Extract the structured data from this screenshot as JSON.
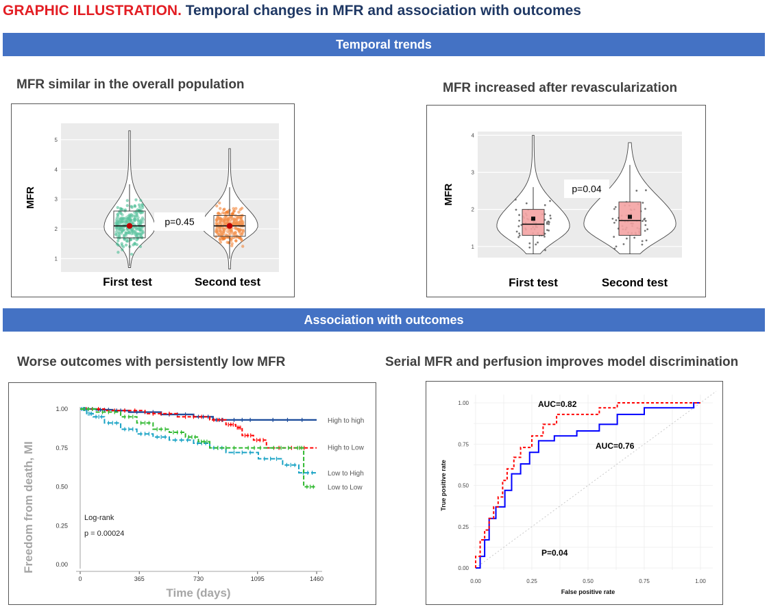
{
  "header": {
    "title_red": "GRAPHIC ILLUSTRATION.",
    "title_rest": "Temporal changes in MFR and association with outcomes",
    "banner_trends": "Temporal trends",
    "banner_outcomes": "Association with outcomes"
  },
  "colors": {
    "title_red": "#e31e24",
    "title_navy": "#1f3864",
    "banner": "#4472c4",
    "teal": "#3cb88c",
    "orange": "#f07c2a",
    "pink": "#f4a3a3",
    "navy": "#1f4e9c",
    "red": "#ff0000",
    "green": "#2eb82e",
    "cyan": "#17a2c4",
    "blue": "#0000ff"
  },
  "chart_data": [
    {
      "id": "violin_overall",
      "type": "violin",
      "title": "MFR similar in the overall population",
      "ylabel": "MFR",
      "categories": [
        "First test",
        "Second test"
      ],
      "ylim": [
        0.55,
        5.55
      ],
      "yticks": [
        1,
        2,
        3,
        4,
        5
      ],
      "ytick_labels": [
        "1",
        "2",
        "3",
        "4",
        "5"
      ],
      "stats": [
        {
          "name": "First test",
          "q1": 1.7,
          "median": 2.1,
          "q3": 2.6,
          "mean": 2.1,
          "min": 0.7,
          "max": 5.3
        },
        {
          "name": "Second test",
          "q1": 1.75,
          "median": 2.1,
          "q3": 2.45,
          "mean": 2.1,
          "min": 0.65,
          "max": 4.7
        }
      ],
      "annotation": "p=0.45"
    },
    {
      "id": "violin_revasc",
      "type": "violin",
      "title": "MFR increased after revascularization",
      "ylabel": "MFR",
      "categories": [
        "First test",
        "Second test"
      ],
      "ylim": [
        0.7,
        4.1
      ],
      "yticks": [
        1,
        2,
        3,
        4
      ],
      "ytick_labels": [
        "1",
        "2",
        "3",
        "4"
      ],
      "stats": [
        {
          "name": "First test",
          "q1": 1.3,
          "median": 1.6,
          "q3": 2.0,
          "mean": 1.75,
          "min": 0.8,
          "max": 4.0
        },
        {
          "name": "Second test",
          "q1": 1.3,
          "median": 1.7,
          "q3": 2.2,
          "mean": 1.8,
          "min": 0.8,
          "max": 3.8
        }
      ],
      "annotation": "p=0.04"
    },
    {
      "id": "km",
      "type": "line",
      "title": "Worse outcomes with persistently low MFR",
      "xlabel": "Time (days)",
      "ylabel": "Freedom from death, MI",
      "xlim": [
        0,
        1460
      ],
      "ylim": [
        0,
        1
      ],
      "xticks": [
        0,
        365,
        730,
        1095,
        1460
      ],
      "xtick_labels": [
        "0",
        "365",
        "730",
        "1095",
        "1460"
      ],
      "yticks": [
        0,
        0.25,
        0.5,
        0.75,
        1.0
      ],
      "ytick_labels": [
        "0.00",
        "0.25",
        "0.50",
        "0.75",
        "1.00"
      ],
      "series": [
        {
          "name": "High to high",
          "x": [
            0,
            100,
            200,
            300,
            500,
            700,
            820,
            900,
            1100,
            1460
          ],
          "y": [
            1.0,
            0.995,
            0.99,
            0.98,
            0.965,
            0.95,
            0.93,
            0.93,
            0.93,
            0.93
          ]
        },
        {
          "name": "High to Low",
          "x": [
            0,
            150,
            400,
            600,
            800,
            900,
            960,
            1000,
            1070,
            1150,
            1460
          ],
          "y": [
            1.0,
            0.99,
            0.97,
            0.95,
            0.93,
            0.9,
            0.88,
            0.83,
            0.8,
            0.75,
            0.75
          ]
        },
        {
          "name": "Low to High",
          "x": [
            0,
            40,
            80,
            150,
            250,
            350,
            450,
            550,
            700,
            800,
            900,
            1100,
            1250,
            1350,
            1460
          ],
          "y": [
            1.0,
            0.97,
            0.95,
            0.91,
            0.87,
            0.84,
            0.82,
            0.8,
            0.78,
            0.75,
            0.72,
            0.68,
            0.64,
            0.59,
            0.59
          ]
        },
        {
          "name": "Low to Low",
          "x": [
            0,
            100,
            250,
            350,
            450,
            550,
            650,
            730,
            800,
            1000,
            1150,
            1330,
            1380,
            1460
          ],
          "y": [
            1.0,
            0.98,
            0.95,
            0.91,
            0.87,
            0.85,
            0.82,
            0.79,
            0.75,
            0.75,
            0.75,
            0.75,
            0.5,
            0.5
          ]
        }
      ],
      "annotations": [
        "Log-rank",
        "p = 0.00024"
      ]
    },
    {
      "id": "roc",
      "type": "line",
      "title": "Serial MFR and perfusion improves model discrimination",
      "xlabel": "False positive rate",
      "ylabel": "True positive rate",
      "xlim": [
        0,
        1
      ],
      "ylim": [
        0,
        1
      ],
      "xticks": [
        0,
        0.25,
        0.5,
        0.75,
        1.0
      ],
      "xtick_labels": [
        "0.00",
        "0.25",
        "0.50",
        "0.75",
        "1.00"
      ],
      "yticks": [
        0,
        0.25,
        0.5,
        0.75,
        1.0
      ],
      "ytick_labels": [
        "0.00",
        "0.25",
        "0.50",
        "0.75",
        "1.00"
      ],
      "series": [
        {
          "name": "AUC=0.82",
          "x": [
            0,
            0,
            0.02,
            0.02,
            0.04,
            0.04,
            0.06,
            0.06,
            0.08,
            0.08,
            0.1,
            0.1,
            0.12,
            0.12,
            0.14,
            0.14,
            0.17,
            0.17,
            0.2,
            0.2,
            0.25,
            0.25,
            0.3,
            0.3,
            0.36,
            0.36,
            0.55,
            0.55,
            0.63,
            0.63,
            1.0
          ],
          "y": [
            0,
            0.07,
            0.07,
            0.17,
            0.17,
            0.23,
            0.23,
            0.3,
            0.3,
            0.37,
            0.37,
            0.43,
            0.43,
            0.53,
            0.53,
            0.6,
            0.6,
            0.67,
            0.67,
            0.73,
            0.73,
            0.8,
            0.8,
            0.87,
            0.87,
            0.93,
            0.93,
            0.97,
            0.97,
            1.0,
            1.0
          ]
        },
        {
          "name": "AUC=0.76",
          "x": [
            0,
            0.02,
            0.02,
            0.04,
            0.04,
            0.06,
            0.06,
            0.09,
            0.09,
            0.13,
            0.13,
            0.16,
            0.16,
            0.2,
            0.2,
            0.24,
            0.24,
            0.28,
            0.28,
            0.35,
            0.35,
            0.45,
            0.45,
            0.55,
            0.55,
            0.63,
            0.63,
            0.75,
            0.75,
            0.97,
            0.97,
            1.0
          ],
          "y": [
            0,
            0,
            0.07,
            0.07,
            0.17,
            0.17,
            0.3,
            0.3,
            0.37,
            0.37,
            0.47,
            0.47,
            0.57,
            0.57,
            0.63,
            0.63,
            0.7,
            0.7,
            0.77,
            0.77,
            0.8,
            0.8,
            0.83,
            0.83,
            0.87,
            0.87,
            0.93,
            0.93,
            0.97,
            0.97,
            1.0,
            1.0
          ]
        }
      ],
      "annotations": [
        "P=0.04"
      ]
    }
  ]
}
